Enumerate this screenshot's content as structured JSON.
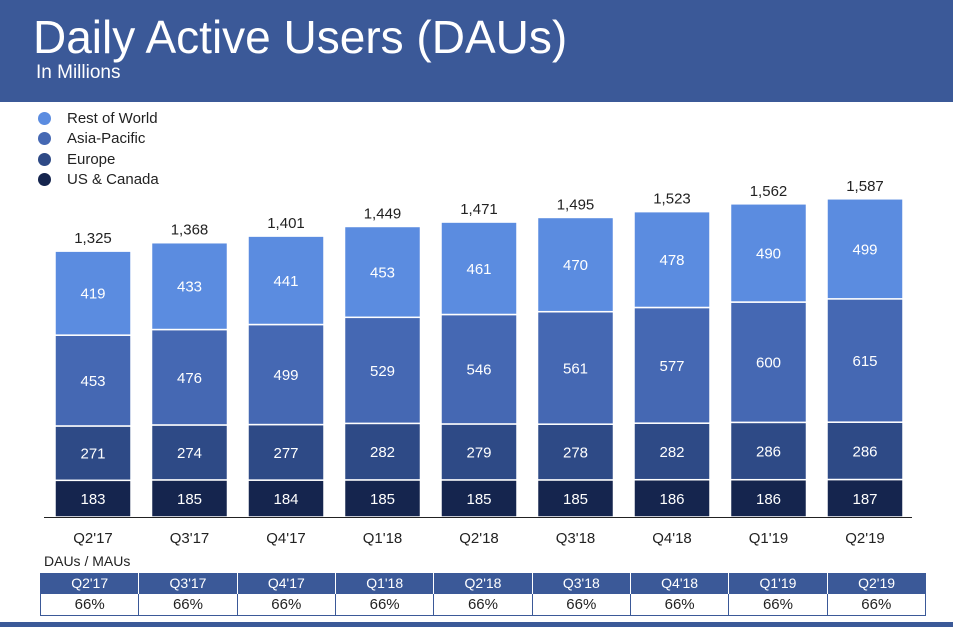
{
  "header": {
    "title": "Daily Active Users (DAUs)",
    "subtitle": "In Millions"
  },
  "colors": {
    "header_bg": "#3b5998",
    "rest_of_world": "#5b8ce0",
    "asia_pacific": "#4568b3",
    "europe": "#2e4a86",
    "us_canada": "#15254e"
  },
  "chart_data": {
    "type": "bar",
    "stacked": true,
    "title": "Daily Active Users (DAUs)",
    "subtitle": "In Millions",
    "categories": [
      "Q2'17",
      "Q3'17",
      "Q4'17",
      "Q1'18",
      "Q2'18",
      "Q3'18",
      "Q4'18",
      "Q1'19",
      "Q2'19"
    ],
    "series": [
      {
        "name": "US & Canada",
        "color": "#15254e",
        "values": [
          183,
          185,
          184,
          185,
          185,
          185,
          186,
          186,
          187
        ]
      },
      {
        "name": "Europe",
        "color": "#2e4a86",
        "values": [
          271,
          274,
          277,
          282,
          279,
          278,
          282,
          286,
          286
        ]
      },
      {
        "name": "Asia-Pacific",
        "color": "#4568b3",
        "values": [
          453,
          476,
          499,
          529,
          546,
          561,
          577,
          600,
          615
        ]
      },
      {
        "name": "Rest of World",
        "color": "#5b8ce0",
        "values": [
          419,
          433,
          441,
          453,
          461,
          470,
          478,
          490,
          499
        ]
      }
    ],
    "totals": [
      "1,325",
      "1,368",
      "1,401",
      "1,449",
      "1,471",
      "1,495",
      "1,523",
      "1,562",
      "1,587"
    ],
    "legend": [
      "Rest of World",
      "Asia-Pacific",
      "Europe",
      "US & Canada"
    ],
    "legend_position": "top-left",
    "xlabel": "",
    "ylabel": "",
    "ylim": [
      0,
      1600
    ],
    "grid": false
  },
  "ratio": {
    "label": "DAUs / MAUs",
    "quarters": [
      "Q2'17",
      "Q3'17",
      "Q4'17",
      "Q1'18",
      "Q2'18",
      "Q3'18",
      "Q4'18",
      "Q1'19",
      "Q2'19"
    ],
    "values": [
      "66%",
      "66%",
      "66%",
      "66%",
      "66%",
      "66%",
      "66%",
      "66%",
      "66%"
    ]
  }
}
